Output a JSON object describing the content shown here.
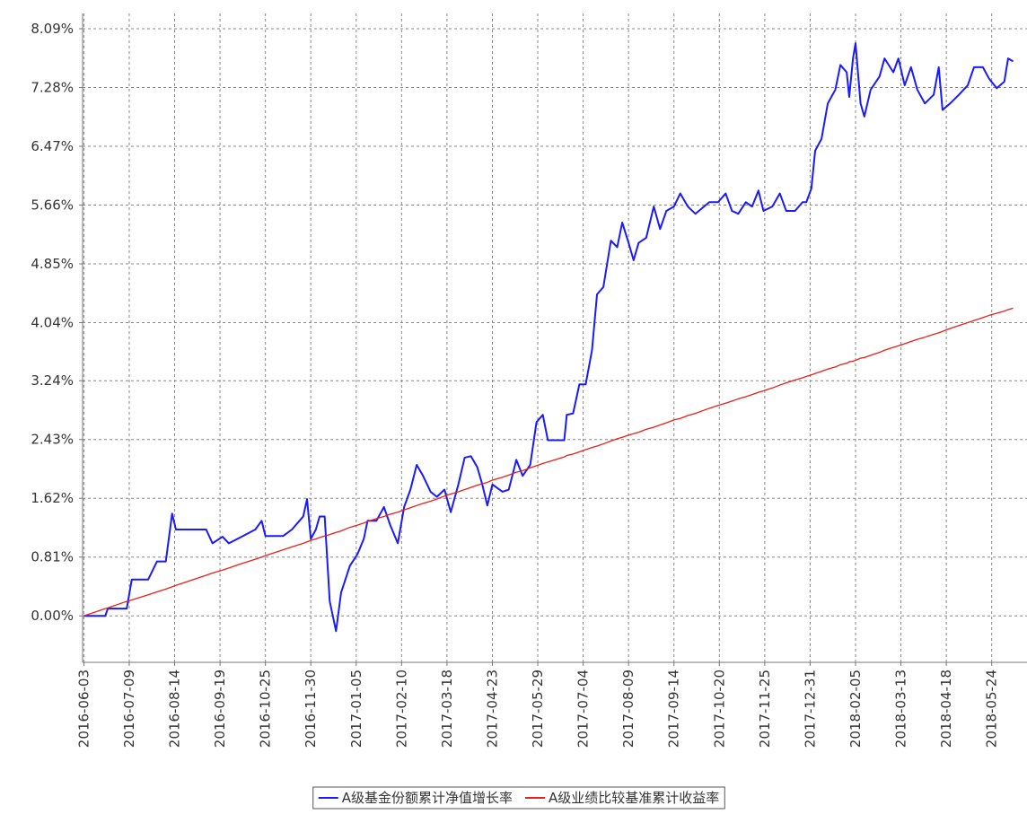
{
  "chart_data": {
    "type": "line",
    "x": [
      "2016-06-03",
      "2016-06-20",
      "2016-06-22",
      "2016-07-07",
      "2016-07-11",
      "2016-07-24",
      "2016-07-31",
      "2016-08-07",
      "2016-08-12",
      "2016-08-15",
      "2016-09-08",
      "2016-09-13",
      "2016-09-21",
      "2016-09-26",
      "2016-10-06",
      "2016-10-17",
      "2016-10-22",
      "2016-10-25",
      "2016-11-08",
      "2016-11-15",
      "2016-11-24",
      "2016-11-27",
      "2016-11-30",
      "2016-12-04",
      "2016-12-07",
      "2016-12-11",
      "2016-12-15",
      "2016-12-20",
      "2016-12-24",
      "2016-12-31",
      "2017-01-06",
      "2017-01-11",
      "2017-01-14",
      "2017-01-21",
      "2017-01-27",
      "2017-02-01",
      "2017-02-07",
      "2017-02-12",
      "2017-02-17",
      "2017-02-22",
      "2017-02-27",
      "2017-03-05",
      "2017-03-10",
      "2017-03-16",
      "2017-03-21",
      "2017-03-27",
      "2017-04-01",
      "2017-04-06",
      "2017-04-11",
      "2017-04-15",
      "2017-04-19",
      "2017-04-23",
      "2017-05-01",
      "2017-05-06",
      "2017-05-12",
      "2017-05-17",
      "2017-05-23",
      "2017-05-28",
      "2017-06-02",
      "2017-06-06",
      "2017-06-19",
      "2017-06-21",
      "2017-06-26",
      "2017-07-01",
      "2017-07-06",
      "2017-07-11",
      "2017-07-15",
      "2017-07-20",
      "2017-07-26",
      "2017-07-31",
      "2017-08-04",
      "2017-08-09",
      "2017-08-13",
      "2017-08-17",
      "2017-08-23",
      "2017-08-29",
      "2017-09-03",
      "2017-09-08",
      "2017-09-14",
      "2017-09-19",
      "2017-09-25",
      "2017-10-01",
      "2017-10-12",
      "2017-10-19",
      "2017-10-25",
      "2017-10-30",
      "2017-11-04",
      "2017-11-10",
      "2017-11-15",
      "2017-11-20",
      "2017-11-24",
      "2017-12-01",
      "2017-12-07",
      "2017-12-12",
      "2017-12-19",
      "2017-12-25",
      "2017-12-28",
      "2018-01-01",
      "2018-01-04",
      "2018-01-09",
      "2018-01-14",
      "2018-01-20",
      "2018-01-24",
      "2018-01-29",
      "2018-01-31",
      "2018-02-03",
      "2018-02-05",
      "2018-02-09",
      "2018-02-12",
      "2018-02-17",
      "2018-02-24",
      "2018-02-28",
      "2018-03-07",
      "2018-03-11",
      "2018-03-16",
      "2018-03-21",
      "2018-03-26",
      "2018-04-01",
      "2018-04-08",
      "2018-04-12",
      "2018-04-15",
      "2018-04-21",
      "2018-04-28",
      "2018-05-05",
      "2018-05-10",
      "2018-05-17",
      "2018-05-22",
      "2018-05-28",
      "2018-06-03",
      "2018-06-06",
      "2018-06-10"
    ],
    "series": [
      {
        "name": "A级基金份额累计净值增长率",
        "color": "#1a1aff",
        "width": 2,
        "values": [
          0,
          0,
          0.1,
          0.1,
          0.5,
          0.5,
          0.75,
          0.75,
          1.41,
          1.19,
          1.19,
          1.0,
          1.09,
          1.0,
          1.09,
          1.19,
          1.31,
          1.1,
          1.1,
          1.19,
          1.37,
          1.61,
          1.06,
          1.19,
          1.37,
          1.37,
          0.2,
          -0.21,
          0.32,
          0.69,
          0.85,
          1.06,
          1.31,
          1.31,
          1.5,
          1.25,
          1.0,
          1.5,
          1.74,
          2.08,
          1.93,
          1.71,
          1.64,
          1.74,
          1.43,
          1.81,
          2.18,
          2.2,
          2.05,
          1.81,
          1.52,
          1.81,
          1.71,
          1.74,
          2.15,
          1.93,
          2.08,
          2.67,
          2.77,
          2.42,
          2.42,
          2.77,
          2.79,
          3.19,
          3.19,
          3.66,
          4.43,
          4.53,
          5.17,
          5.08,
          5.42,
          5.14,
          4.9,
          5.14,
          5.21,
          5.64,
          5.33,
          5.58,
          5.64,
          5.82,
          5.64,
          5.54,
          5.7,
          5.7,
          5.82,
          5.58,
          5.54,
          5.7,
          5.64,
          5.86,
          5.58,
          5.64,
          5.82,
          5.58,
          5.58,
          5.7,
          5.7,
          5.89,
          6.41,
          6.57,
          7.06,
          7.25,
          7.59,
          7.49,
          7.15,
          7.68,
          7.89,
          7.06,
          6.88,
          7.25,
          7.43,
          7.68,
          7.49,
          7.68,
          7.31,
          7.56,
          7.25,
          7.06,
          7.18,
          7.56,
          6.97,
          7.06,
          7.18,
          7.31,
          7.56,
          7.56,
          7.4,
          7.27,
          7.36,
          7.68,
          7.64
        ]
      },
      {
        "name": "A级业绩比较基准累计收益率",
        "color": "#e8201a",
        "width": 1.3,
        "values": [
          0,
          0.1,
          0.11,
          0.2,
          0.22,
          0.29,
          0.33,
          0.37,
          0.4,
          0.42,
          0.56,
          0.59,
          0.63,
          0.66,
          0.72,
          0.78,
          0.81,
          0.83,
          0.91,
          0.95,
          1.0,
          1.02,
          1.04,
          1.06,
          1.08,
          1.1,
          1.12,
          1.15,
          1.17,
          1.22,
          1.25,
          1.28,
          1.3,
          1.34,
          1.37,
          1.4,
          1.43,
          1.46,
          1.49,
          1.52,
          1.55,
          1.58,
          1.61,
          1.65,
          1.68,
          1.71,
          1.74,
          1.77,
          1.8,
          1.82,
          1.84,
          1.87,
          1.91,
          1.94,
          1.98,
          2.0,
          2.04,
          2.07,
          2.1,
          2.12,
          2.19,
          2.21,
          2.23,
          2.26,
          2.29,
          2.32,
          2.34,
          2.37,
          2.41,
          2.44,
          2.46,
          2.49,
          2.51,
          2.53,
          2.57,
          2.6,
          2.63,
          2.66,
          2.7,
          2.72,
          2.76,
          2.79,
          2.86,
          2.9,
          2.93,
          2.96,
          2.99,
          3.02,
          3.05,
          3.08,
          3.1,
          3.14,
          3.18,
          3.21,
          3.25,
          3.28,
          3.3,
          3.32,
          3.34,
          3.37,
          3.4,
          3.43,
          3.46,
          3.48,
          3.5,
          3.51,
          3.52,
          3.55,
          3.56,
          3.59,
          3.63,
          3.66,
          3.7,
          3.72,
          3.75,
          3.78,
          3.81,
          3.84,
          3.88,
          3.9,
          3.92,
          3.96,
          4.0,
          4.04,
          4.07,
          4.11,
          4.14,
          4.17,
          4.2,
          4.22,
          4.24
        ]
      }
    ],
    "xlim": [
      "2016-06-02",
      "2018-06-21"
    ],
    "xticks": [
      "2016-06-03",
      "2016-07-09",
      "2016-08-14",
      "2016-09-19",
      "2016-10-25",
      "2016-11-30",
      "2017-01-05",
      "2017-02-10",
      "2017-03-18",
      "2017-04-23",
      "2017-05-29",
      "2017-07-04",
      "2017-08-09",
      "2017-09-14",
      "2017-10-20",
      "2017-11-25",
      "2017-12-31",
      "2018-02-05",
      "2018-03-13",
      "2018-04-18",
      "2018-05-24"
    ],
    "ylim": [
      -0.64,
      8.3
    ],
    "yticks": [
      {
        "value": 0,
        "label": "0.00%"
      },
      {
        "value": 0.81,
        "label": "0.81%"
      },
      {
        "value": 1.62,
        "label": "1.62%"
      },
      {
        "value": 2.43,
        "label": "2.43%"
      },
      {
        "value": 3.24,
        "label": "3.24%"
      },
      {
        "value": 4.04,
        "label": "4.04%"
      },
      {
        "value": 4.85,
        "label": "4.85%"
      },
      {
        "value": 5.66,
        "label": "5.66%"
      },
      {
        "value": 6.47,
        "label": "6.47%"
      },
      {
        "value": 7.28,
        "label": "7.28%"
      },
      {
        "value": 8.09,
        "label": "8.09%"
      }
    ],
    "grid": true,
    "legend": "bottom"
  }
}
